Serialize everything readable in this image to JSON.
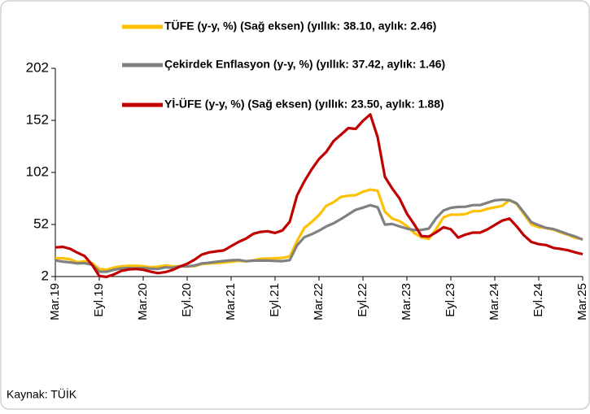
{
  "chart_data": {
    "type": "line",
    "source": "Kaynak: TÜİK",
    "categories": [
      "Mar.19",
      null,
      null,
      null,
      null,
      null,
      "Eyl.19",
      null,
      null,
      null,
      null,
      null,
      "Mar.20",
      null,
      null,
      null,
      null,
      null,
      "Eyl.20",
      null,
      null,
      null,
      null,
      null,
      "Mar.21",
      null,
      null,
      null,
      null,
      null,
      "Eyl.21",
      null,
      null,
      null,
      null,
      null,
      "Mar.22",
      null,
      null,
      null,
      null,
      null,
      "Eyl.22",
      null,
      null,
      null,
      null,
      null,
      "Mar.23",
      null,
      null,
      null,
      null,
      null,
      "Eyl.23",
      null,
      null,
      null,
      null,
      null,
      "Mar.24",
      null,
      null,
      null,
      null,
      null,
      "Eyl.24",
      null,
      null,
      null,
      null,
      null,
      "Mar.25"
    ],
    "ylim": [
      2,
      202
    ],
    "yticks": [
      2,
      52,
      102,
      152,
      202
    ],
    "grid": false,
    "series": [
      {
        "name": "TÜFE (y-y, %) (Sağ eksen) (yıllık: 38.10, aylık: 2.46)",
        "color": "#ffc000",
        "values": [
          19.7,
          19.5,
          18.7,
          15.7,
          16.7,
          15,
          9.3,
          8.6,
          10.6,
          11.8,
          12.2,
          12.4,
          11.9,
          10.9,
          11.4,
          12.6,
          11.8,
          11.8,
          11.8,
          11.9,
          14,
          14.6,
          15,
          15.6,
          16.2,
          17.1,
          16.6,
          17.5,
          19,
          19.3,
          19.6,
          19.9,
          21.3,
          36.1,
          48.7,
          54.4,
          61.1,
          70,
          73.5,
          78.6,
          79.6,
          80.2,
          83.5,
          85.5,
          84.4,
          64.3,
          57.7,
          55.2,
          50.5,
          43.7,
          39.6,
          38.2,
          47.8,
          58.9,
          61.5,
          61.4,
          62,
          64.8,
          64.9,
          67.1,
          68.5,
          69.8,
          75.5,
          71.6,
          61.8,
          52,
          49.4,
          48.6,
          47.1,
          44.4,
          42.1,
          39.1,
          38.1
        ]
      },
      {
        "name": "Çekirdek Enflasyon (y-y, %) (yıllık: 37.42, aylık: 1.46)",
        "color": "#808080",
        "values": [
          17.5,
          16.3,
          15.7,
          14.6,
          14.9,
          13.4,
          6.7,
          6.6,
          8.5,
          9.8,
          10.1,
          9.9,
          10.1,
          9.6,
          9.3,
          10.8,
          10.4,
          11.9,
          11.7,
          12.6,
          14.6,
          15.3,
          16.2,
          16.9,
          17.6,
          17.9,
          16.8,
          17.2,
          17.3,
          17.3,
          17,
          16.8,
          17.7,
          31.9,
          39.8,
          42.6,
          46.1,
          50.1,
          53.2,
          57.2,
          61.7,
          66.1,
          68.2,
          70.5,
          68.6,
          51.9,
          52.5,
          50.1,
          48.1,
          46.6,
          46.8,
          48.1,
          58.1,
          65.5,
          68,
          68.9,
          69,
          70.6,
          70.6,
          72.9,
          75.2,
          75.8,
          75.4,
          72.2,
          63.3,
          54.2,
          51.3,
          48.7,
          47.6,
          45.3,
          42.6,
          40.4,
          37.4
        ]
      },
      {
        "name": "Yİ-ÜFE (y-y, %) (Sağ eksen) (yıllık: 23.50, aylık: 1.88)",
        "color": "#c00000",
        "values": [
          30,
          30.5,
          28.7,
          25,
          21.7,
          13.5,
          2.5,
          1.7,
          4,
          7.4,
          8.8,
          9.3,
          8.5,
          6.7,
          5.3,
          6.2,
          8.3,
          11.5,
          14.3,
          18.2,
          23.1,
          25.2,
          26.2,
          27.1,
          31.2,
          35.2,
          38.3,
          42.9,
          44.9,
          45.5,
          43.9,
          46.3,
          54.6,
          79.9,
          93.5,
          105,
          114.9,
          121.8,
          132.2,
          138.3,
          144.6,
          143.8,
          151.5,
          157.7,
          136,
          97.7,
          86.5,
          76.9,
          62.4,
          52.1,
          40.8,
          40.4,
          44.5,
          49.4,
          47.4,
          39.4,
          42.3,
          44.2,
          44.2,
          47.3,
          51.5,
          55.7,
          57.7,
          50.1,
          41.4,
          35.2,
          33.1,
          32.2,
          29.5,
          28.5,
          27.2,
          25.2,
          23.5
        ]
      }
    ]
  }
}
